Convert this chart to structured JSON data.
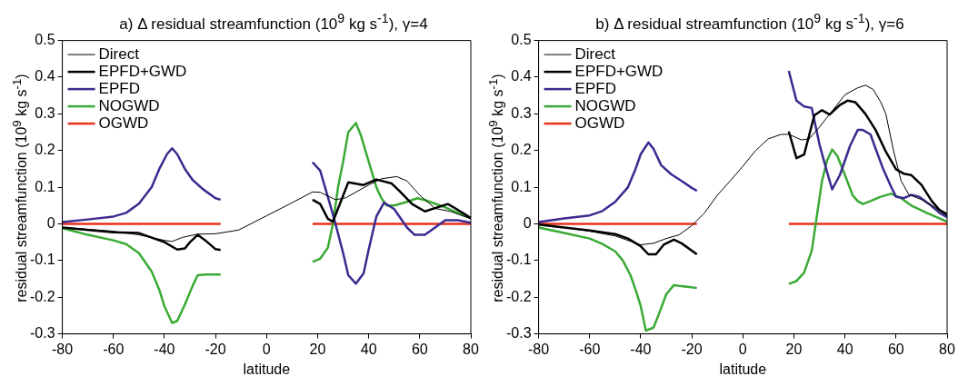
{
  "chart_data": [
    {
      "type": "line",
      "title": "a) Δ residual streamfunction (10$^{9}$ kg s$^{-1}$), γ=4",
      "xlabel": "latitude",
      "ylabel": "residual streamfunction (10$^{9}$ kg s$^{-1}$)",
      "xlim": [
        -80,
        80
      ],
      "xticks": [
        -80,
        -60,
        -40,
        -20,
        0,
        20,
        40,
        60,
        80
      ],
      "ylim": [
        -0.3,
        0.5
      ],
      "yticks": [
        -0.3,
        -0.2,
        -0.1,
        0,
        0.1,
        0.2,
        0.3,
        0.4,
        0.5
      ],
      "legend": "top left",
      "series": [
        {
          "name": "Direct",
          "color": "#000000",
          "x": [
            -80,
            -70,
            -60,
            -50,
            -40,
            -37,
            -33,
            -27,
            -20,
            -11,
            0,
            9,
            18,
            21,
            27,
            31,
            40,
            45,
            51,
            55,
            60,
            66,
            72,
            80
          ],
          "values": [
            -0.01,
            -0.015,
            -0.02,
            -0.03,
            -0.045,
            -0.048,
            -0.037,
            -0.028,
            -0.027,
            -0.017,
            0.022,
            0.054,
            0.087,
            0.086,
            0.066,
            0.071,
            0.106,
            0.123,
            0.129,
            0.117,
            0.078,
            0.042,
            0.034,
            0.014
          ]
        },
        {
          "name": "EPFD+GWD",
          "color": "#000000",
          "x": [
            -80,
            -60,
            -50,
            -40,
            -35,
            -32,
            -30,
            -27,
            -24,
            -20,
            -18,
            0,
            18,
            21,
            24,
            26,
            32,
            38,
            43,
            49,
            52,
            57,
            62,
            71,
            74,
            80
          ],
          "values": [
            -0.01,
            -0.023,
            -0.025,
            -0.05,
            -0.07,
            -0.067,
            -0.05,
            -0.03,
            -0.045,
            -0.069,
            -0.071,
            null,
            0.066,
            0.054,
            0.014,
            0.006,
            0.113,
            0.106,
            0.121,
            0.11,
            0.09,
            0.054,
            0.034,
            0.054,
            0.042,
            0.016
          ]
        },
        {
          "name": "EPFD",
          "color": "#3b2a8f",
          "x": [
            -80,
            -70,
            -60,
            -55,
            -50,
            -45,
            -42,
            -39,
            -37,
            -35,
            -32,
            -29,
            -25,
            -20,
            -18,
            0,
            18,
            21,
            25,
            27,
            30,
            32,
            35,
            38,
            40,
            43,
            46,
            50,
            55,
            58,
            62,
            66,
            70,
            75,
            80
          ],
          "values": [
            0.005,
            0.012,
            0.02,
            0.03,
            0.055,
            0.1,
            0.15,
            0.19,
            0.206,
            0.19,
            0.15,
            0.12,
            0.095,
            0.07,
            0.066,
            null,
            0.168,
            0.145,
            0.05,
            0,
            -0.08,
            -0.14,
            -0.163,
            -0.135,
            -0.07,
            0.02,
            0.058,
            0.04,
            -0.01,
            -0.03,
            -0.03,
            -0.01,
            0.01,
            0.01,
            0.003
          ]
        },
        {
          "name": "NOGWD",
          "color": "#3aaa35",
          "x": [
            -80,
            -70,
            -60,
            -55,
            -50,
            -45,
            -42,
            -40,
            -37,
            -35,
            -32,
            -29,
            -27,
            -24,
            -18,
            0,
            18,
            21,
            24,
            26,
            28,
            30,
            32,
            35,
            37,
            40,
            43,
            45,
            47,
            50,
            55,
            59,
            62,
            66,
            70,
            75,
            80
          ],
          "values": [
            -0.012,
            -0.03,
            -0.045,
            -0.055,
            -0.08,
            -0.13,
            -0.18,
            -0.225,
            -0.27,
            -0.265,
            -0.22,
            -0.17,
            -0.14,
            -0.138,
            -0.138,
            null,
            -0.104,
            -0.095,
            -0.065,
            0,
            0.1,
            0.17,
            0.25,
            0.275,
            0.24,
            0.17,
            0.1,
            0.07,
            0.05,
            0.05,
            0.06,
            0.07,
            0.065,
            0.055,
            0.045,
            0.03,
            0.015
          ]
        },
        {
          "name": "OGWD",
          "color": "#e8301c",
          "x": [
            -80,
            -18,
            0,
            18,
            80
          ],
          "values": [
            0,
            0,
            null,
            0,
            0
          ]
        }
      ]
    },
    {
      "type": "line",
      "title": "b) Δ residual streamfunction (10$^{9}$ kg s$^{-1}$), γ=6",
      "xlabel": "latitude",
      "ylabel": "residual streamfunction (10$^{9}$ kg s$^{-1}$)",
      "xlim": [
        -80,
        80
      ],
      "xticks": [
        -80,
        -60,
        -40,
        -20,
        0,
        20,
        40,
        60,
        80
      ],
      "ylim": [
        -0.3,
        0.5
      ],
      "yticks": [
        -0.3,
        -0.2,
        -0.1,
        0,
        0.1,
        0.2,
        0.3,
        0.4,
        0.5
      ],
      "legend": "top left",
      "series": [
        {
          "name": "Direct",
          "color": "#000000",
          "x": [
            -80,
            -60,
            -50,
            -43,
            -40,
            -35,
            -30,
            -25,
            -20,
            -15,
            -10,
            -5,
            0,
            5,
            10,
            15,
            18,
            23,
            26,
            30,
            35,
            40,
            45,
            48,
            51,
            54,
            56,
            59,
            62,
            65,
            70,
            75,
            80
          ],
          "values": [
            0,
            -0.02,
            -0.033,
            -0.05,
            -0.057,
            -0.053,
            -0.04,
            -0.03,
            -0.005,
            0.03,
            0.078,
            0.117,
            0.157,
            0.2,
            0.232,
            0.244,
            0.244,
            0.229,
            0.232,
            0.264,
            0.308,
            0.352,
            0.371,
            0.378,
            0.367,
            0.332,
            0.3,
            0.2,
            0.117,
            0.08,
            0.066,
            0.046,
            0.022
          ]
        },
        {
          "name": "EPFD+GWD",
          "color": "#000000",
          "x": [
            -80,
            -60,
            -50,
            -45,
            -40,
            -37,
            -34,
            -31,
            -27,
            -24,
            -20,
            -18,
            0,
            18,
            21,
            24,
            28,
            31,
            34,
            38,
            41,
            44,
            48,
            52,
            56,
            60,
            63,
            66,
            70,
            74,
            77,
            80
          ],
          "values": [
            -0.002,
            -0.018,
            -0.028,
            -0.04,
            -0.061,
            -0.083,
            -0.083,
            -0.057,
            -0.043,
            -0.053,
            -0.073,
            -0.083,
            null,
            0.252,
            0.179,
            0.189,
            0.296,
            0.31,
            0.298,
            0.324,
            0.336,
            0.332,
            0.3,
            0.256,
            0.197,
            0.149,
            0.137,
            0.133,
            0.106,
            0.062,
            0.038,
            0.026
          ]
        },
        {
          "name": "EPFD",
          "color": "#3b2a8f",
          "x": [
            -80,
            -70,
            -60,
            -55,
            -50,
            -45,
            -42,
            -40,
            -37,
            -35,
            -32,
            -28,
            -24,
            -20,
            -18,
            0,
            18,
            21,
            24,
            27,
            30,
            33,
            35,
            38,
            42,
            45,
            47,
            50,
            52,
            55,
            58,
            60,
            63,
            66,
            69,
            73,
            77,
            80
          ],
          "values": [
            0.005,
            0.015,
            0.023,
            0.035,
            0.06,
            0.1,
            0.15,
            0.19,
            0.222,
            0.205,
            0.16,
            0.135,
            0.117,
            0.098,
            0.09,
            null,
            0.417,
            0.336,
            0.32,
            0.316,
            0.217,
            0.141,
            0.094,
            0.133,
            0.213,
            0.256,
            0.256,
            0.244,
            0.205,
            0.149,
            0.102,
            0.074,
            0.07,
            0.079,
            0.074,
            0.054,
            0.03,
            0.018
          ]
        },
        {
          "name": "NOGWD",
          "color": "#3aaa35",
          "x": [
            -80,
            -70,
            -60,
            -55,
            -50,
            -47,
            -44,
            -42,
            -40,
            -38,
            -35,
            -33,
            -30,
            -27,
            -24,
            -18,
            0,
            18,
            21,
            24,
            27,
            29,
            31,
            33,
            35,
            37,
            40,
            43,
            45,
            47,
            50,
            54,
            58,
            62,
            66,
            72,
            80
          ],
          "values": [
            -0.01,
            -0.025,
            -0.04,
            -0.055,
            -0.075,
            -0.1,
            -0.14,
            -0.18,
            -0.224,
            -0.291,
            -0.283,
            -0.248,
            -0.192,
            -0.167,
            -0.17,
            -0.175,
            null,
            -0.164,
            -0.156,
            -0.133,
            -0.073,
            0.022,
            0.117,
            0.173,
            0.203,
            0.185,
            0.133,
            0.078,
            0.062,
            0.054,
            0.062,
            0.074,
            0.082,
            0.07,
            0.05,
            0.03,
            0.006
          ]
        },
        {
          "name": "OGWD",
          "color": "#e8301c",
          "x": [
            -80,
            -18,
            0,
            18,
            80
          ],
          "values": [
            0,
            0,
            null,
            0,
            0
          ]
        }
      ]
    }
  ]
}
